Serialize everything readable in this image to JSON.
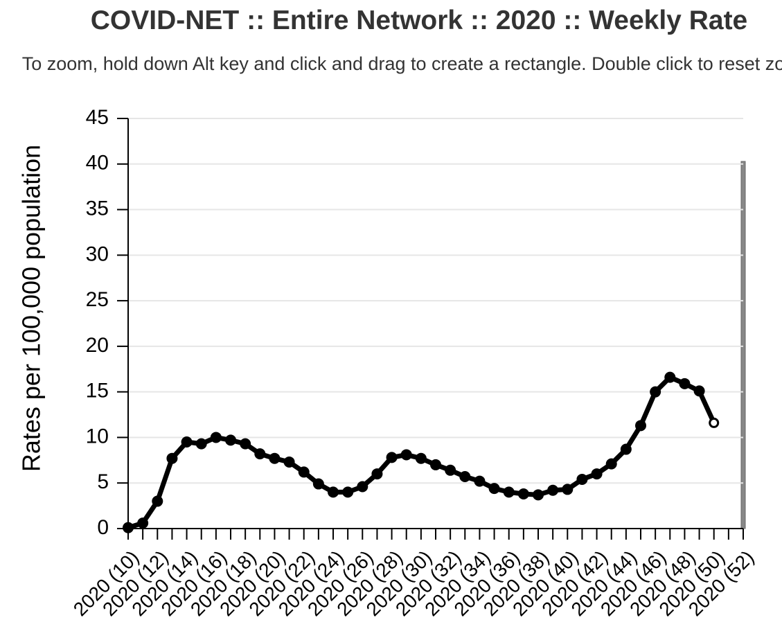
{
  "chart_data": {
    "type": "line",
    "title": "COVID-NET :: Entire Network :: 2020 :: Weekly Rate",
    "subtitle": "To zoom, hold down Alt key and click and drag to create a rectangle. Double click to reset zoom.",
    "y_label": "Rates per 100,000 population",
    "x": [
      10,
      11,
      12,
      13,
      14,
      15,
      16,
      17,
      18,
      19,
      20,
      21,
      22,
      23,
      24,
      25,
      26,
      27,
      28,
      29,
      30,
      31,
      32,
      33,
      34,
      35,
      36,
      37,
      38,
      39,
      40,
      41,
      42,
      43,
      44,
      45,
      46,
      47,
      48,
      49,
      50
    ],
    "series": [
      {
        "name": "Entire Network",
        "color": "#000000",
        "values": [
          0.1,
          0.6,
          3.0,
          7.7,
          9.5,
          9.3,
          10.0,
          9.7,
          9.3,
          8.2,
          7.7,
          7.3,
          6.2,
          4.9,
          4.0,
          4.0,
          4.6,
          6.0,
          7.8,
          8.1,
          7.7,
          7.0,
          6.4,
          5.7,
          5.2,
          4.4,
          4.0,
          3.8,
          3.7,
          4.2,
          4.3,
          5.4,
          6.0,
          7.1,
          8.7,
          11.3,
          15.0,
          16.6,
          15.9,
          15.1,
          11.6
        ]
      }
    ],
    "xlim": [
      10,
      52
    ],
    "xticks": [
      {
        "value": 10,
        "label": "2020 (10)"
      },
      {
        "value": 12,
        "label": "2020 (12)"
      },
      {
        "value": 14,
        "label": "2020 (14)"
      },
      {
        "value": 16,
        "label": "2020 (16)"
      },
      {
        "value": 18,
        "label": "2020 (18)"
      },
      {
        "value": 20,
        "label": "2020 (20)"
      },
      {
        "value": 22,
        "label": "2020 (22)"
      },
      {
        "value": 24,
        "label": "2020 (24)"
      },
      {
        "value": 26,
        "label": "2020 (26)"
      },
      {
        "value": 28,
        "label": "2020 (28)"
      },
      {
        "value": 30,
        "label": "2020 (30)"
      },
      {
        "value": 32,
        "label": "2020 (32)"
      },
      {
        "value": 34,
        "label": "2020 (34)"
      },
      {
        "value": 36,
        "label": "2020 (36)"
      },
      {
        "value": 38,
        "label": "2020 (38)"
      },
      {
        "value": 40,
        "label": "2020 (40)"
      },
      {
        "value": 42,
        "label": "2020 (42)"
      },
      {
        "value": 44,
        "label": "2020 (44)"
      },
      {
        "value": 46,
        "label": "2020 (46)"
      },
      {
        "value": 48,
        "label": "2020 (48)"
      },
      {
        "value": 50,
        "label": "2020 (50)"
      },
      {
        "value": 52,
        "label": "2020 (52)"
      }
    ],
    "xminorticks": [
      11,
      13,
      15,
      17,
      19,
      21,
      23,
      25,
      27,
      29,
      31,
      33,
      35,
      37,
      39,
      41,
      43,
      45,
      47,
      49,
      51
    ],
    "ylim": [
      0,
      45
    ],
    "yticks": [
      0,
      5,
      10,
      15,
      20,
      25,
      30,
      35,
      40,
      45
    ],
    "grid": true
  }
}
